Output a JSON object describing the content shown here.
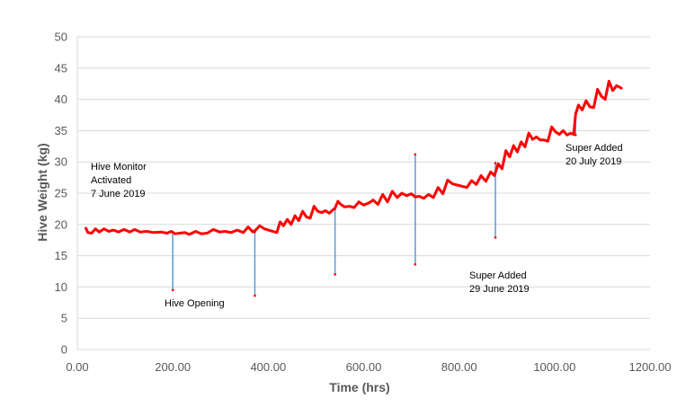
{
  "chart_data": {
    "type": "line",
    "title": "",
    "xlabel": "Time (hrs)",
    "ylabel": "Hive Weight (kg)",
    "xlim": [
      0,
      1200
    ],
    "ylim": [
      0,
      50
    ],
    "x_tick_labels": [
      "0.00",
      "200.00",
      "400.00",
      "600.00",
      "800.00",
      "1000.00",
      "1200.00"
    ],
    "y_tick_labels": [
      "0",
      "5",
      "10",
      "15",
      "20",
      "25",
      "30",
      "35",
      "40",
      "45",
      "50"
    ],
    "grid": "horizontal",
    "legend": "none",
    "colors": {
      "series": "#ff0000",
      "events": "#5b9bd5",
      "grid": "#d9d9d9",
      "text": "#595959"
    },
    "series": [
      {
        "values": [
          [
            18,
            19.4
          ],
          [
            22,
            18.7
          ],
          [
            30,
            18.6
          ],
          [
            38,
            19.3
          ],
          [
            46,
            18.8
          ],
          [
            56,
            19.3
          ],
          [
            66,
            18.9
          ],
          [
            76,
            19.1
          ],
          [
            86,
            18.8
          ],
          [
            98,
            19.2
          ],
          [
            110,
            18.8
          ],
          [
            120,
            19.2
          ],
          [
            132,
            18.8
          ],
          [
            145,
            18.9
          ],
          [
            160,
            18.7
          ],
          [
            175,
            18.8
          ],
          [
            188,
            18.6
          ],
          [
            197,
            18.9
          ],
          [
            205,
            18.5
          ],
          [
            215,
            18.6
          ],
          [
            225,
            18.7
          ],
          [
            235,
            18.4
          ],
          [
            248,
            18.9
          ],
          [
            260,
            18.5
          ],
          [
            272,
            18.6
          ],
          [
            285,
            19.2
          ],
          [
            298,
            18.8
          ],
          [
            310,
            18.9
          ],
          [
            322,
            18.7
          ],
          [
            335,
            19.1
          ],
          [
            348,
            18.7
          ],
          [
            358,
            19.6
          ],
          [
            368,
            18.8
          ],
          [
            375,
            19.2
          ],
          [
            382,
            19.8
          ],
          [
            392,
            19.3
          ],
          [
            405,
            19.0
          ],
          [
            418,
            18.7
          ],
          [
            425,
            20.4
          ],
          [
            432,
            19.8
          ],
          [
            440,
            20.8
          ],
          [
            448,
            20.0
          ],
          [
            456,
            21.4
          ],
          [
            464,
            20.6
          ],
          [
            472,
            22.1
          ],
          [
            480,
            21.2
          ],
          [
            488,
            21.0
          ],
          [
            496,
            22.9
          ],
          [
            504,
            22.1
          ],
          [
            512,
            21.9
          ],
          [
            520,
            22.2
          ],
          [
            528,
            21.8
          ],
          [
            535,
            22.3
          ],
          [
            540,
            22.6
          ],
          [
            546,
            23.7
          ],
          [
            552,
            23.2
          ],
          [
            560,
            22.8
          ],
          [
            570,
            22.9
          ],
          [
            580,
            22.7
          ],
          [
            590,
            23.6
          ],
          [
            600,
            23.1
          ],
          [
            610,
            23.4
          ],
          [
            620,
            23.9
          ],
          [
            630,
            23.2
          ],
          [
            640,
            24.8
          ],
          [
            650,
            23.6
          ],
          [
            660,
            25.3
          ],
          [
            670,
            24.3
          ],
          [
            680,
            25.0
          ],
          [
            690,
            24.6
          ],
          [
            700,
            24.9
          ],
          [
            708,
            24.4
          ],
          [
            716,
            24.5
          ],
          [
            726,
            24.2
          ],
          [
            736,
            24.8
          ],
          [
            746,
            24.3
          ],
          [
            756,
            25.9
          ],
          [
            766,
            24.9
          ],
          [
            776,
            27.1
          ],
          [
            786,
            26.5
          ],
          [
            796,
            26.3
          ],
          [
            806,
            26.1
          ],
          [
            816,
            25.9
          ],
          [
            826,
            27.0
          ],
          [
            836,
            26.4
          ],
          [
            846,
            27.8
          ],
          [
            856,
            26.9
          ],
          [
            866,
            28.4
          ],
          [
            874,
            27.8
          ],
          [
            882,
            29.7
          ],
          [
            890,
            28.9
          ],
          [
            898,
            31.8
          ],
          [
            906,
            30.8
          ],
          [
            914,
            32.6
          ],
          [
            922,
            31.6
          ],
          [
            930,
            33.2
          ],
          [
            938,
            32.4
          ],
          [
            946,
            34.6
          ],
          [
            954,
            33.6
          ],
          [
            962,
            34.0
          ],
          [
            970,
            33.5
          ],
          [
            978,
            33.5
          ],
          [
            986,
            33.3
          ],
          [
            994,
            35.6
          ],
          [
            1002,
            34.8
          ],
          [
            1010,
            34.4
          ],
          [
            1018,
            35.0
          ],
          [
            1026,
            34.3
          ],
          [
            1034,
            34.6
          ],
          [
            1040,
            34.4
          ],
          [
            1044,
            37.6
          ],
          [
            1050,
            39.1
          ],
          [
            1058,
            38.3
          ],
          [
            1066,
            39.8
          ],
          [
            1074,
            38.8
          ],
          [
            1082,
            38.7
          ],
          [
            1090,
            41.6
          ],
          [
            1098,
            40.5
          ],
          [
            1106,
            40.0
          ],
          [
            1114,
            42.9
          ],
          [
            1122,
            41.4
          ],
          [
            1130,
            42.2
          ],
          [
            1140,
            41.8
          ]
        ]
      }
    ],
    "events": [
      {
        "x": 200,
        "top": 18.7,
        "bottom": 9.5
      },
      {
        "x": 372,
        "top": 18.8,
        "bottom": 8.6
      },
      {
        "x": 540,
        "top": 22.5,
        "bottom": 12.0
      },
      {
        "x": 708,
        "top": 31.2,
        "bottom": 13.6
      },
      {
        "x": 876,
        "top": 29.8,
        "bottom": 17.9
      },
      {
        "x": 1044,
        "top": 37.8,
        "bottom": 34.3
      }
    ],
    "annotations": [
      {
        "id": "monitor",
        "lines": [
          "Hive Monitor",
          "Activated",
          "7 June 2019"
        ]
      },
      {
        "id": "opening",
        "lines": [
          "Hive Opening"
        ]
      },
      {
        "id": "super1",
        "lines": [
          "Super Added",
          "29 June 2019"
        ]
      },
      {
        "id": "super2",
        "lines": [
          "Super Added",
          "20 July 2019"
        ]
      }
    ]
  }
}
